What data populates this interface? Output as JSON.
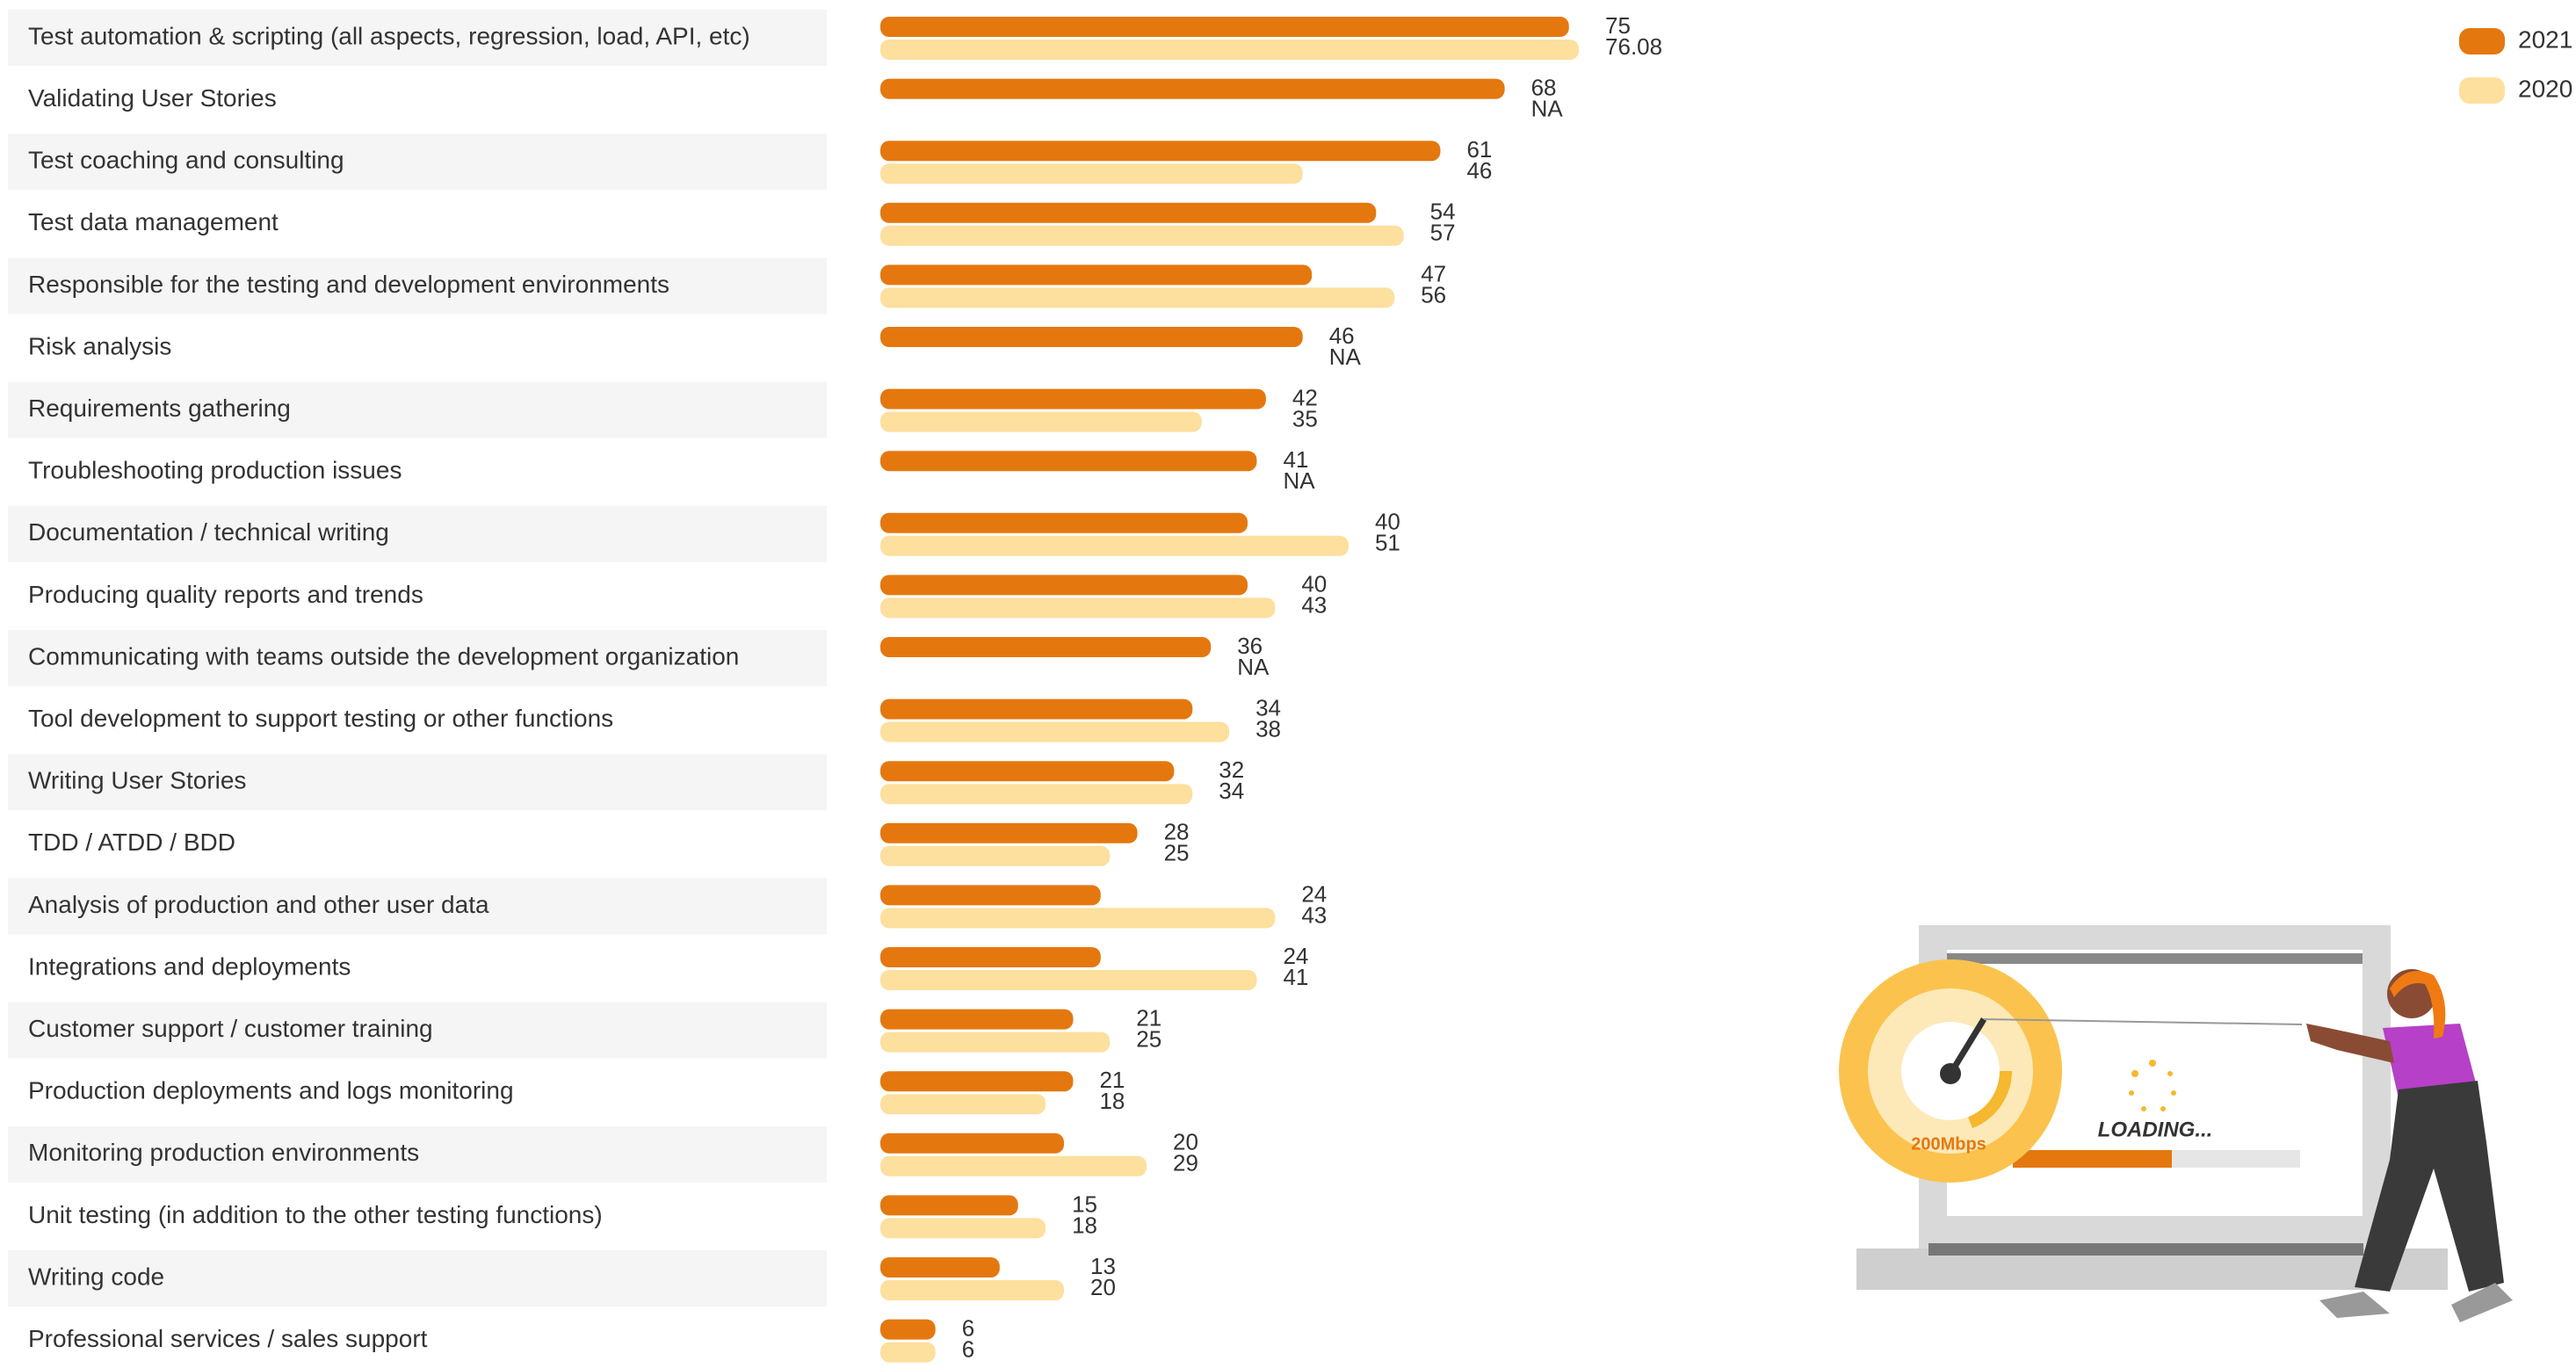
{
  "chart_data": {
    "type": "hbar",
    "categories": [
      "Test automation & scripting (all aspects, regression, load, API, etc)",
      "Validating User Stories",
      "Test coaching and consulting",
      "Test data management",
      "Responsible for the testing and development environments",
      "Risk analysis",
      "Requirements gathering",
      "Troubleshooting production issues",
      "Documentation / technical writing",
      "Producing quality reports and trends",
      "Communicating with teams outside the development organization",
      "Tool development to support testing or other functions",
      "Writing User Stories",
      "TDD / ATDD / BDD",
      "Analysis of production and other user data",
      "Integrations and deployments",
      "Customer support / customer training",
      "Production deployments and logs monitoring",
      "Monitoring production environments",
      "Unit testing (in addition to the other testing functions)",
      "Writing code",
      "Professional services / sales support"
    ],
    "series": [
      {
        "name": "2021",
        "color": "#e4780f",
        "values": [
          75,
          68,
          61,
          54,
          47,
          46,
          42,
          41,
          40,
          40,
          36,
          34,
          32,
          28,
          24,
          24,
          21,
          21,
          20,
          15,
          13,
          6
        ]
      },
      {
        "name": "2020",
        "color": "#fddf9e",
        "values": [
          76.08,
          null,
          46,
          57,
          56,
          null,
          35,
          null,
          51,
          43,
          null,
          38,
          34,
          25,
          43,
          41,
          25,
          18,
          29,
          18,
          20,
          6
        ],
        "value_labels": [
          "76.08",
          "NA",
          "46",
          "57",
          "56",
          "NA",
          "35",
          "NA",
          "51",
          "43",
          "NA",
          "38",
          "34",
          "25",
          "43",
          "41",
          "25",
          "18",
          "29",
          "18",
          "20",
          "6"
        ]
      }
    ],
    "legend": "top-right"
  },
  "illustration": {
    "speed": "200Mbps",
    "status": "LOADING..."
  }
}
